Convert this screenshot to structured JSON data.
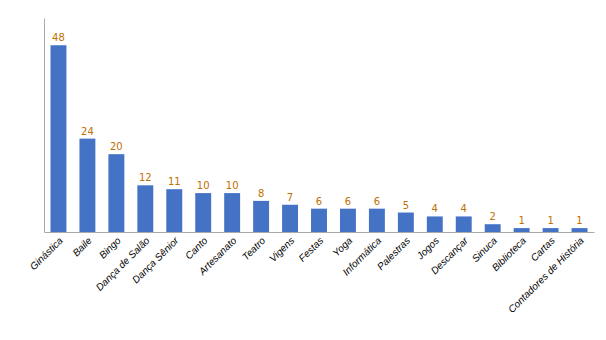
{
  "chart_data": {
    "type": "bar",
    "categories": [
      "Ginástica",
      "Baile",
      "Bingo",
      "Dança de Salão",
      "Dança Sênior",
      "Canto",
      "Artesanato",
      "Teatro",
      "Vigens",
      "Festas",
      "Yoga",
      "Informática",
      "Palestras",
      "Jogos",
      "Descançar",
      "Sinuca",
      "Biblioteca",
      "Cartas",
      "Contadores de História"
    ],
    "values": [
      48,
      24,
      20,
      12,
      11,
      10,
      10,
      8,
      7,
      6,
      6,
      6,
      5,
      4,
      4,
      2,
      1,
      1,
      1
    ],
    "color": "#4472C4",
    "ylim": [
      0,
      55
    ],
    "data_labels": true,
    "tick_labels": "x",
    "grid": false
  }
}
